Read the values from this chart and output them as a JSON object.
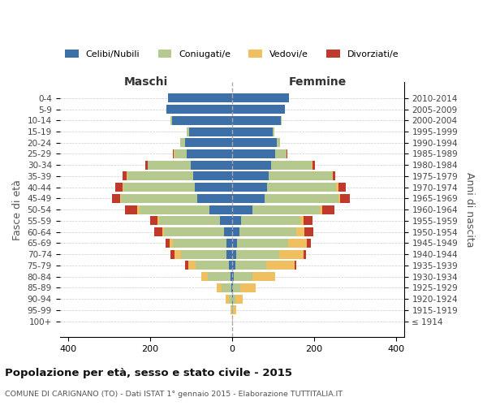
{
  "age_groups": [
    "100+",
    "95-99",
    "90-94",
    "85-89",
    "80-84",
    "75-79",
    "70-74",
    "65-69",
    "60-64",
    "55-59",
    "50-54",
    "45-49",
    "40-44",
    "35-39",
    "30-34",
    "25-29",
    "20-24",
    "15-19",
    "10-14",
    "5-9",
    "0-4"
  ],
  "birth_years": [
    "≤ 1914",
    "1915-1919",
    "1920-1924",
    "1925-1929",
    "1930-1934",
    "1935-1939",
    "1940-1944",
    "1945-1949",
    "1950-1954",
    "1955-1959",
    "1960-1964",
    "1965-1969",
    "1970-1974",
    "1975-1979",
    "1980-1984",
    "1985-1989",
    "1990-1994",
    "1995-1999",
    "2000-2004",
    "2005-2009",
    "2010-2014"
  ],
  "males": {
    "celibi": [
      0,
      0,
      0,
      2,
      4,
      8,
      14,
      14,
      20,
      28,
      55,
      85,
      90,
      95,
      100,
      110,
      115,
      105,
      145,
      160,
      155
    ],
    "coniugati": [
      0,
      2,
      8,
      22,
      55,
      80,
      110,
      130,
      145,
      150,
      170,
      185,
      175,
      160,
      105,
      30,
      10,
      5,
      5,
      0,
      0
    ],
    "vedovi": [
      0,
      2,
      8,
      12,
      15,
      18,
      15,
      8,
      5,
      3,
      5,
      3,
      2,
      1,
      1,
      1,
      0,
      0,
      0,
      0,
      0
    ],
    "divorziati": [
      0,
      0,
      0,
      0,
      0,
      8,
      10,
      10,
      20,
      18,
      30,
      20,
      18,
      10,
      5,
      3,
      0,
      0,
      0,
      0,
      0
    ]
  },
  "females": {
    "nubili": [
      0,
      0,
      2,
      2,
      5,
      8,
      10,
      12,
      18,
      22,
      50,
      80,
      85,
      90,
      95,
      105,
      110,
      100,
      120,
      130,
      140
    ],
    "coniugate": [
      0,
      2,
      6,
      18,
      45,
      75,
      105,
      125,
      140,
      145,
      165,
      180,
      170,
      155,
      100,
      28,
      8,
      3,
      2,
      0,
      0
    ],
    "vedove": [
      2,
      8,
      18,
      38,
      55,
      70,
      60,
      45,
      20,
      8,
      5,
      5,
      5,
      2,
      2,
      1,
      0,
      0,
      0,
      0,
      0
    ],
    "divorziate": [
      0,
      0,
      0,
      0,
      0,
      5,
      5,
      10,
      20,
      22,
      30,
      22,
      18,
      5,
      5,
      2,
      0,
      0,
      0,
      0,
      0
    ]
  },
  "colors": {
    "celibi": "#3d6fa8",
    "coniugati": "#b5c98e",
    "vedovi": "#f0c060",
    "divorziati": "#c0392b"
  },
  "xlim": 420,
  "title": "Popolazione per età, sesso e stato civile - 2015",
  "subtitle": "COMUNE DI CARIGNANO (TO) - Dati ISTAT 1° gennaio 2015 - Elaborazione TUTTITALIA.IT",
  "ylabel_left": "Fasce di età",
  "ylabel_right": "Anni di nascita",
  "xlabel_left": "Maschi",
  "xlabel_right": "Femmine",
  "background_color": "#ffffff",
  "grid_color": "#cccccc",
  "legend_labels": [
    "Celibi/Nubili",
    "Coniugati/e",
    "Vedovi/e",
    "Divorziati/e"
  ]
}
